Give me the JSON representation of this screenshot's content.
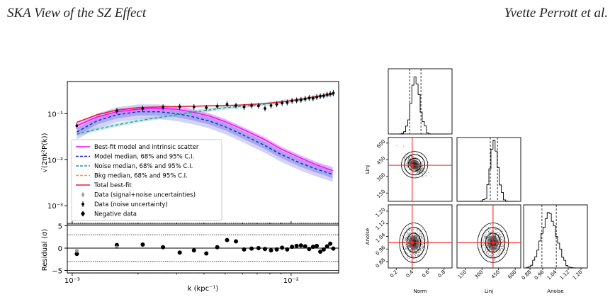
{
  "header": {
    "left_title": "SKA View of the SZ Effect",
    "right_author": "Yvette Perrott et al."
  },
  "chart_data": [
    {
      "type": "line",
      "name_hint": "power-spectrum",
      "xlabel": "k (kpc⁻¹)",
      "ylabel": "√(2πk²P(k))",
      "x_scale": "log",
      "y_scale": "log",
      "xlim": [
        0.00095,
        0.0165
      ],
      "ylim": [
        0.0004,
        0.5
      ],
      "x_ticks": [
        {
          "v": 0.001,
          "label": "10⁻³"
        },
        {
          "v": 0.01,
          "label": "10⁻²"
        }
      ],
      "y_ticks": [
        {
          "v": 0.1,
          "label": "10⁻¹"
        },
        {
          "v": 0.01,
          "label": "10⁻²"
        },
        {
          "v": 0.001,
          "label": "10⁻³"
        }
      ],
      "legend_position": "lower-left",
      "legend": [
        {
          "label": "Best-fit model and intrinsic scatter",
          "color": "#ff00ff",
          "style": "solid"
        },
        {
          "label": "Model median, 68% and 95% C.I.",
          "color": "#1a1ad6",
          "style": "dashed"
        },
        {
          "label": "Noise median, 68% and 95% C.I.",
          "color": "#1a9a9a",
          "style": "dashed"
        },
        {
          "label": "Bkg median, 68% and 95% C.I.",
          "color": "#ff9a1a",
          "style": "dashed"
        },
        {
          "label": "Total best-fit",
          "color": "#e8213a",
          "style": "solid"
        },
        {
          "label": "Data (signal+noise uncertainties)",
          "color": "#999999",
          "style": "errorbar"
        },
        {
          "label": "Data (noise uncertainty)",
          "color": "#000000",
          "style": "errorbar"
        },
        {
          "label": "Negative data",
          "color": "#000000",
          "style": "diamond"
        }
      ],
      "series": [
        {
          "key": "model",
          "color": "#1a1ad6",
          "x": [
            0.00105,
            0.0013,
            0.0016,
            0.002,
            0.0025,
            0.003,
            0.0035,
            0.0042,
            0.005,
            0.006,
            0.0075,
            0.009,
            0.011,
            0.013,
            0.0155
          ],
          "y": [
            0.04,
            0.07,
            0.095,
            0.11,
            0.11,
            0.1,
            0.087,
            0.07,
            0.052,
            0.035,
            0.021,
            0.013,
            0.0085,
            0.0063,
            0.0048
          ]
        },
        {
          "key": "noise",
          "color": "#1a9a9a",
          "x": [
            0.00105,
            0.0013,
            0.0016,
            0.002,
            0.0025,
            0.003,
            0.0035,
            0.0042,
            0.005,
            0.006,
            0.0075,
            0.009,
            0.011,
            0.013,
            0.0155
          ],
          "y": [
            0.036,
            0.046,
            0.057,
            0.07,
            0.083,
            0.095,
            0.107,
            0.12,
            0.135,
            0.145,
            0.16,
            0.18,
            0.2,
            0.23,
            0.26
          ]
        },
        {
          "key": "best_fit",
          "color": "#ff00ff",
          "x": [
            0.00105,
            0.0013,
            0.0016,
            0.002,
            0.0025,
            0.003,
            0.0035,
            0.0042,
            0.005,
            0.006,
            0.0075,
            0.009,
            0.011,
            0.013,
            0.0155
          ],
          "y": [
            0.055,
            0.085,
            0.11,
            0.125,
            0.13,
            0.125,
            0.11,
            0.09,
            0.067,
            0.046,
            0.028,
            0.017,
            0.011,
            0.0078,
            0.0058
          ]
        },
        {
          "key": "total",
          "color": "#e8213a",
          "x": [
            0.00105,
            0.0013,
            0.0016,
            0.002,
            0.0025,
            0.003,
            0.0035,
            0.0042,
            0.005,
            0.006,
            0.0075,
            0.009,
            0.011,
            0.013,
            0.0155
          ],
          "y": [
            0.065,
            0.095,
            0.12,
            0.135,
            0.14,
            0.143,
            0.145,
            0.148,
            0.15,
            0.155,
            0.165,
            0.18,
            0.205,
            0.235,
            0.27
          ]
        }
      ],
      "data_points": {
        "x": [
          0.00105,
          0.0016,
          0.0021,
          0.0026,
          0.0031,
          0.0036,
          0.0041,
          0.0046,
          0.0051,
          0.0056,
          0.0061,
          0.0066,
          0.0071,
          0.0076,
          0.0081,
          0.0086,
          0.0091,
          0.0096,
          0.0101,
          0.0106,
          0.0111,
          0.0116,
          0.0121,
          0.0126,
          0.0131,
          0.0136,
          0.0141,
          0.0146,
          0.0151,
          0.0156
        ],
        "y": [
          0.055,
          0.115,
          0.13,
          0.138,
          0.142,
          0.14,
          0.135,
          0.145,
          0.16,
          0.15,
          0.14,
          0.15,
          0.148,
          0.13,
          0.15,
          0.16,
          0.17,
          0.175,
          0.19,
          0.195,
          0.2,
          0.21,
          0.22,
          0.215,
          0.23,
          0.24,
          0.245,
          0.26,
          0.27,
          0.28
        ],
        "residual": [
          -1.3,
          0.7,
          0.8,
          0.2,
          -1.0,
          -0.5,
          -1.2,
          0.2,
          1.8,
          1.5,
          -0.3,
          -0.1,
          0.0,
          -0.2,
          -0.5,
          -0.3,
          0.1,
          -0.3,
          0.3,
          0.5,
          0.6,
          0.4,
          -0.2,
          0.3,
          0.5,
          -0.8,
          -0.3,
          0.4,
          1.0,
          -0.1
        ]
      }
    },
    {
      "type": "scatter",
      "name_hint": "corner-plot",
      "parameters": [
        "Norm",
        "Linj",
        "Anoise"
      ],
      "truth": {
        "Norm": 0.4,
        "Linj": 400,
        "Anoise": 1.0
      },
      "axes": {
        "Norm": {
          "ticks": [
            0.2,
            0.4,
            0.6,
            0.8
          ],
          "tick_labels": [
            "0.2",
            "0.4",
            "0.6",
            "0.8"
          ],
          "range": [
            0.1,
            0.9
          ]
        },
        "Linj": {
          "ticks": [
            150,
            300,
            450,
            600
          ],
          "tick_labels": [
            "150",
            "300",
            "450",
            "600"
          ],
          "range": [
            75,
            650
          ]
        },
        "Anoise": {
          "ticks": [
            0.88,
            0.96,
            1.04,
            1.12,
            1.2
          ],
          "tick_labels": [
            "0.88",
            "0.96",
            "1.04",
            "1.12",
            "1.20"
          ],
          "range": [
            0.84,
            1.24
          ]
        }
      },
      "marginal_quantiles": {
        "Norm": [
          0.37,
          0.51
        ],
        "Linj": [
          375,
          440
        ],
        "Anoise": [
          0.955,
          1.045
        ]
      }
    }
  ]
}
